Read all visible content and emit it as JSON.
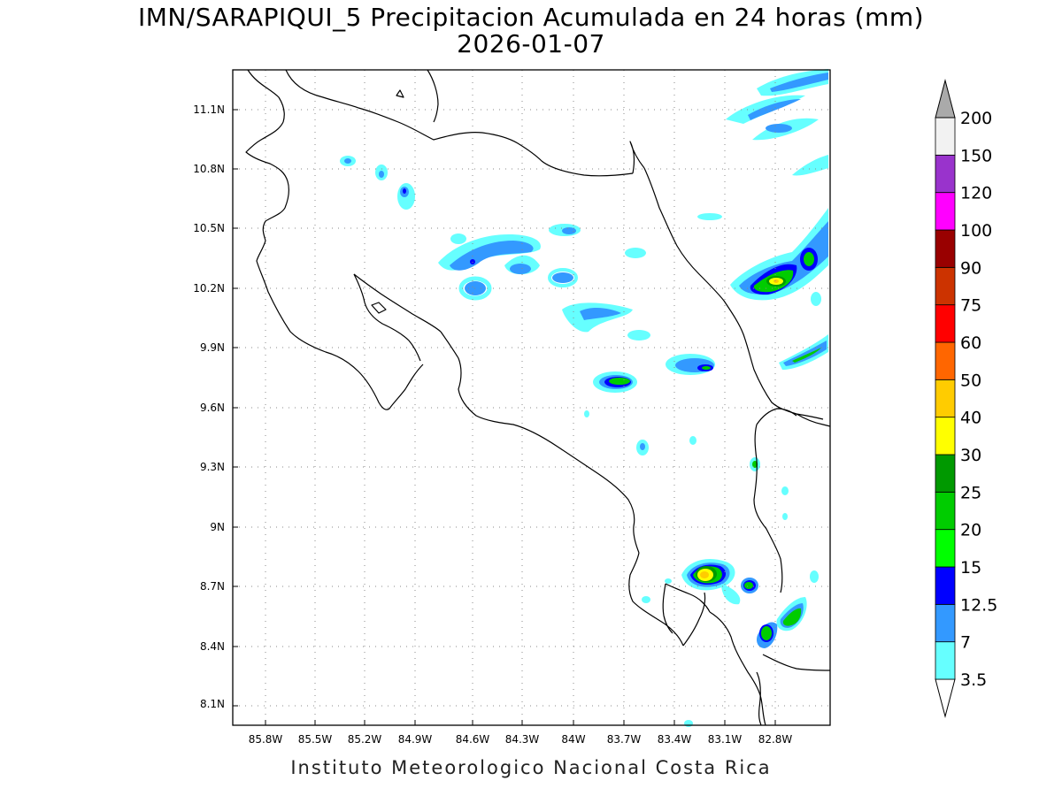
{
  "title": {
    "line1": "IMN/SARAPIQUI_5 Precipitacion Acumulada en 24 horas (mm)",
    "line2": "2026-01-07"
  },
  "credit": "Instituto Meteorologico Nacional Costa Rica",
  "map": {
    "lon_range": [
      -86.0,
      -83.0
    ],
    "lat_range": [
      8.0,
      11.3
    ],
    "lon_ticks": [
      "85.8W",
      "85.5W",
      "85.2W",
      "84.9W",
      "84.6W",
      "84.3W",
      "84W",
      "83.7W",
      "83.4W",
      "83.1W",
      "82.8W"
    ],
    "lat_ticks": [
      "8.1N",
      "8.4N",
      "8.7N",
      "9N",
      "9.3N",
      "9.6N",
      "9.9N",
      "10.2N",
      "10.5N",
      "10.8N",
      "11.1N"
    ]
  },
  "colorbar": {
    "levels": [
      "3.5",
      "7",
      "12.5",
      "15",
      "20",
      "25",
      "30",
      "40",
      "50",
      "60",
      "75",
      "90",
      "100",
      "120",
      "150",
      "200"
    ],
    "colors": [
      "#66ffff",
      "#3399ff",
      "#0000ff",
      "#00ff00",
      "#00cc00",
      "#009900",
      "#ffff00",
      "#ffcc00",
      "#ff6600",
      "#ff0000",
      "#cc3300",
      "#990000",
      "#ff00ff",
      "#9933cc",
      "#f2f2f2",
      "#aaaaaa"
    ]
  },
  "colors": {
    "light": "#66ffff",
    "medium": "#3399ff",
    "heavy": "#0000ff",
    "green1": "#00ff00",
    "green2": "#00cc00",
    "green3": "#009900",
    "yellow": "#ffff00",
    "orange": "#ffcc00"
  }
}
